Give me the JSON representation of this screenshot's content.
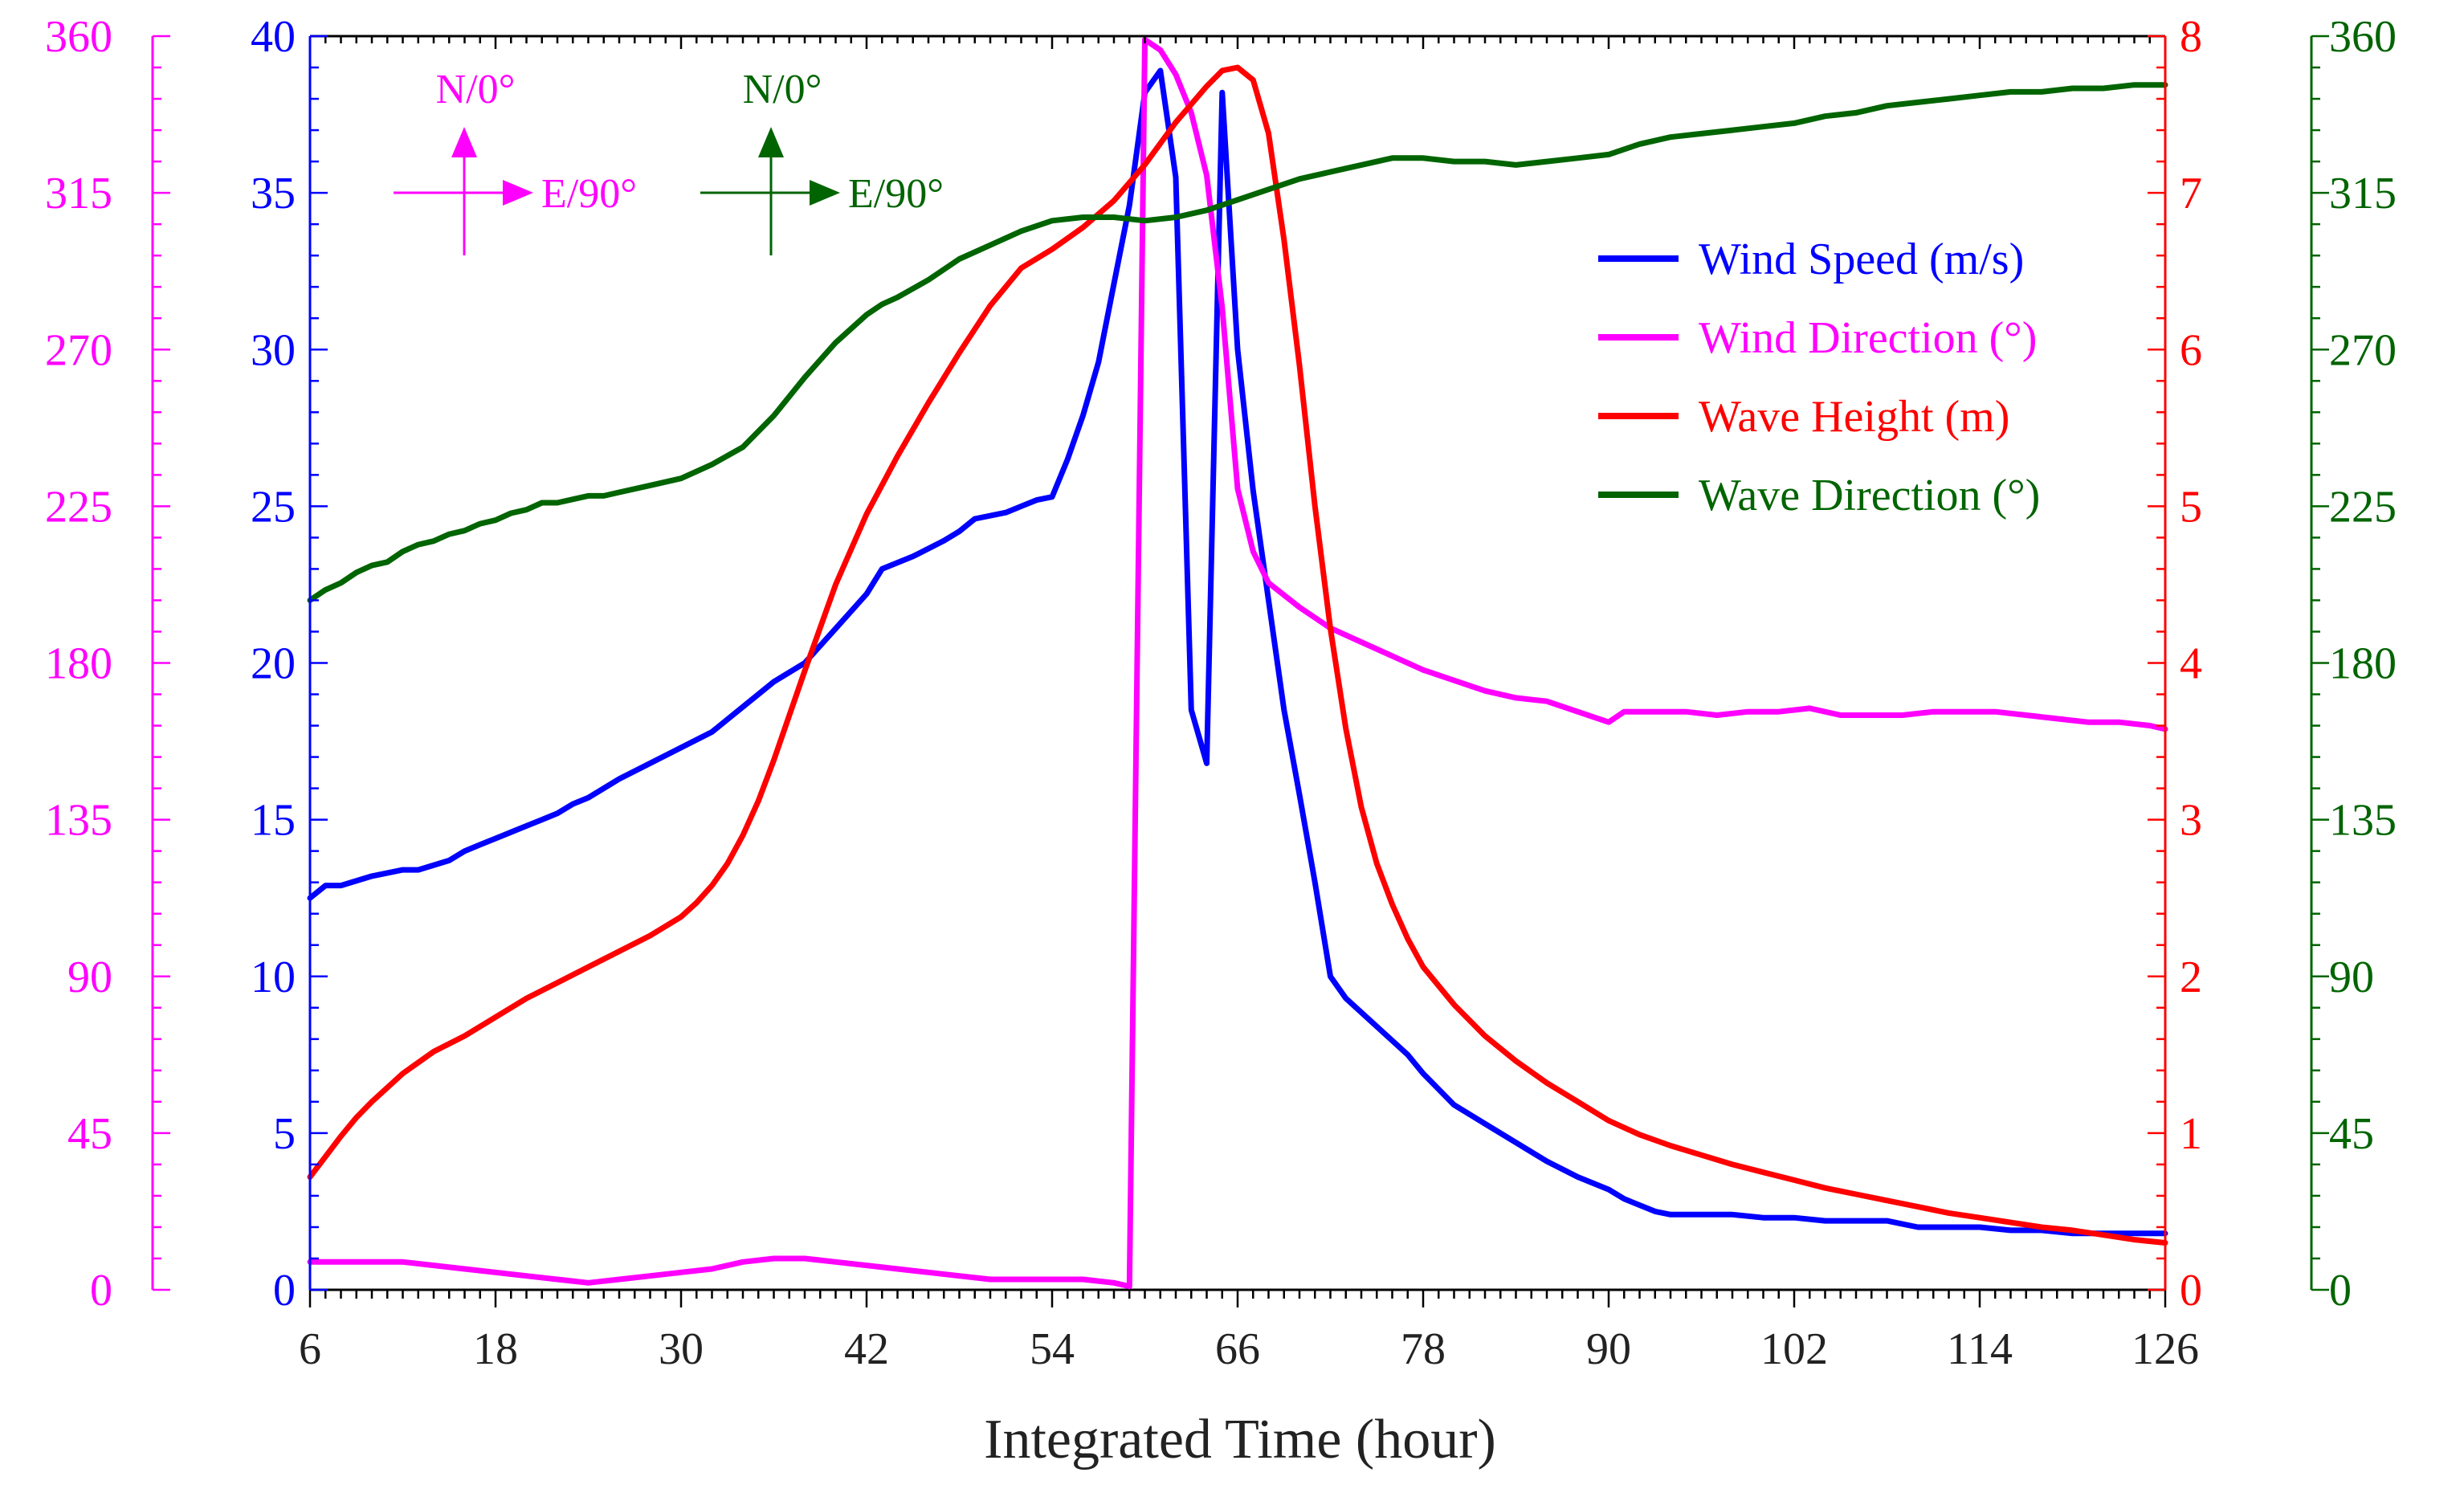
{
  "chart_data": {
    "type": "line",
    "title": "",
    "xlabel": "Integrated Time (hour)",
    "xlim": [
      6,
      126
    ],
    "xticks": [
      6,
      18,
      30,
      42,
      54,
      66,
      78,
      90,
      102,
      114,
      126
    ],
    "axes": {
      "wind_direction": {
        "color": "#ff00ff",
        "side": "outer-left",
        "lim": [
          0,
          360
        ],
        "ticks": [
          0,
          45,
          90,
          135,
          180,
          225,
          270,
          315,
          360
        ]
      },
      "wind_speed": {
        "color": "#0000ff",
        "side": "left",
        "lim": [
          0,
          40
        ],
        "ticks": [
          0,
          5,
          10,
          15,
          20,
          25,
          30,
          35,
          40
        ]
      },
      "wave_height": {
        "color": "#ff0000",
        "side": "right",
        "lim": [
          0,
          8
        ],
        "ticks": [
          0,
          1,
          2,
          3,
          4,
          5,
          6,
          7,
          8
        ]
      },
      "wave_direction": {
        "color": "#006400",
        "side": "outer-right",
        "lim": [
          0,
          360
        ],
        "ticks": [
          0,
          45,
          90,
          135,
          180,
          225,
          270,
          315,
          360
        ]
      }
    },
    "legend_position": "upper-right",
    "series": [
      {
        "name": "Wind Speed (m/s)",
        "axis": "wind_speed",
        "color": "#0000ff",
        "x": [
          6,
          7,
          8,
          10,
          12,
          13,
          15,
          16,
          17,
          18,
          20,
          21,
          22,
          23,
          24,
          26,
          28,
          30,
          32,
          34,
          36,
          38,
          40,
          42,
          43,
          45,
          47,
          48,
          49,
          51,
          53,
          54,
          55,
          56,
          57,
          58,
          59,
          60,
          61,
          62,
          63,
          64,
          64.5,
          65,
          66,
          67,
          68,
          69,
          70,
          71,
          72,
          73,
          75,
          77,
          78,
          79,
          80,
          82,
          84,
          86,
          88,
          90,
          91,
          93,
          94,
          96,
          98,
          100,
          102,
          104,
          106,
          108,
          110,
          112,
          114,
          116,
          118,
          120,
          122,
          124,
          126
        ],
        "y": [
          12.5,
          12.9,
          12.9,
          13.2,
          13.4,
          13.4,
          13.7,
          14.0,
          14.2,
          14.4,
          14.8,
          15.0,
          15.2,
          15.5,
          15.7,
          16.3,
          16.8,
          17.3,
          17.8,
          18.6,
          19.4,
          20.0,
          21.1,
          22.2,
          23.0,
          23.4,
          23.9,
          24.2,
          24.6,
          24.8,
          25.2,
          25.3,
          26.5,
          27.9,
          29.6,
          32.1,
          34.6,
          38.2,
          38.9,
          35.5,
          18.5,
          16.8,
          27.5,
          38.2,
          30.0,
          25.5,
          22.0,
          18.5,
          15.8,
          13.0,
          10.0,
          9.3,
          8.4,
          7.5,
          6.9,
          6.4,
          5.9,
          5.3,
          4.7,
          4.1,
          3.6,
          3.2,
          2.9,
          2.5,
          2.4,
          2.4,
          2.4,
          2.3,
          2.3,
          2.2,
          2.2,
          2.2,
          2.0,
          2.0,
          2.0,
          1.9,
          1.9,
          1.8,
          1.8,
          1.8,
          1.8
        ]
      },
      {
        "name": "Wind Direction (°)",
        "axis": "wind_direction",
        "color": "#ff00ff",
        "x": [
          6,
          8,
          10,
          12,
          14,
          16,
          18,
          20,
          22,
          24,
          26,
          28,
          30,
          32,
          34,
          36,
          38,
          40,
          42,
          44,
          46,
          48,
          50,
          52,
          54,
          56,
          58,
          59,
          60,
          61,
          62,
          63,
          64,
          65,
          66,
          67,
          68,
          70,
          72,
          74,
          76,
          78,
          80,
          82,
          84,
          86,
          88,
          90,
          91,
          93,
          95,
          97,
          99,
          101,
          103,
          105,
          107,
          109,
          111,
          113,
          115,
          117,
          119,
          121,
          123,
          125,
          126
        ],
        "y": [
          8,
          8,
          8,
          8,
          7,
          6,
          5,
          4,
          3,
          2,
          3,
          4,
          5,
          6,
          8,
          9,
          9,
          8,
          7,
          6,
          5,
          4,
          3,
          3,
          3,
          3,
          2,
          1,
          359,
          356,
          349,
          338,
          320,
          282,
          230,
          212,
          203,
          196,
          190,
          186,
          182,
          178,
          175,
          172,
          170,
          169,
          166,
          163,
          166,
          166,
          166,
          165,
          166,
          166,
          167,
          165,
          165,
          165,
          166,
          166,
          166,
          165,
          164,
          163,
          163,
          162,
          161
        ]
      },
      {
        "name": "Wave Height (m)",
        "axis": "wave_height",
        "color": "#ff0000",
        "x": [
          6,
          7,
          8,
          9,
          10,
          12,
          14,
          16,
          18,
          20,
          22,
          24,
          26,
          28,
          30,
          31,
          32,
          33,
          34,
          35,
          36,
          38,
          40,
          42,
          44,
          46,
          48,
          50,
          52,
          54,
          56,
          58,
          60,
          62,
          64,
          65,
          66,
          67,
          68,
          69,
          70,
          71,
          72,
          73,
          74,
          75,
          76,
          77,
          78,
          80,
          82,
          84,
          86,
          88,
          90,
          92,
          94,
          96,
          98,
          100,
          102,
          104,
          106,
          108,
          110,
          112,
          114,
          116,
          118,
          120,
          122,
          124,
          126
        ],
        "y": [
          0.72,
          0.85,
          0.98,
          1.1,
          1.2,
          1.38,
          1.52,
          1.62,
          1.74,
          1.86,
          1.96,
          2.06,
          2.16,
          2.26,
          2.38,
          2.47,
          2.58,
          2.72,
          2.9,
          3.12,
          3.38,
          3.95,
          4.5,
          4.95,
          5.32,
          5.66,
          5.98,
          6.28,
          6.52,
          6.64,
          6.78,
          6.95,
          7.18,
          7.45,
          7.68,
          7.78,
          7.8,
          7.72,
          7.38,
          6.7,
          5.9,
          5.0,
          4.22,
          3.58,
          3.08,
          2.72,
          2.46,
          2.24,
          2.06,
          1.82,
          1.62,
          1.46,
          1.32,
          1.2,
          1.08,
          0.99,
          0.92,
          0.86,
          0.8,
          0.75,
          0.7,
          0.65,
          0.61,
          0.57,
          0.53,
          0.49,
          0.46,
          0.43,
          0.4,
          0.38,
          0.35,
          0.32,
          0.3
        ]
      },
      {
        "name": "Wave Direction (°)",
        "axis": "wave_direction",
        "color": "#006400",
        "x": [
          6,
          7,
          8,
          9,
          10,
          11,
          12,
          13,
          14,
          15,
          16,
          17,
          18,
          19,
          20,
          21,
          22,
          23,
          24,
          25,
          26,
          28,
          30,
          32,
          34,
          36,
          38,
          40,
          42,
          43,
          44,
          46,
          48,
          50,
          52,
          54,
          56,
          58,
          60,
          62,
          64,
          66,
          68,
          70,
          72,
          74,
          76,
          78,
          80,
          82,
          84,
          86,
          88,
          90,
          92,
          94,
          96,
          98,
          100,
          102,
          104,
          106,
          108,
          110,
          112,
          114,
          116,
          118,
          120,
          122,
          124,
          126
        ],
        "y": [
          198,
          201,
          203,
          206,
          208,
          209,
          212,
          214,
          215,
          217,
          218,
          220,
          221,
          223,
          224,
          226,
          226,
          227,
          228,
          228,
          229,
          231,
          233,
          237,
          242,
          251,
          262,
          272,
          280,
          283,
          285,
          290,
          296,
          300,
          304,
          307,
          308,
          308,
          307,
          308,
          310,
          313,
          316,
          319,
          321,
          323,
          325,
          325,
          324,
          324,
          323,
          324,
          325,
          326,
          329,
          331,
          332,
          333,
          334,
          335,
          337,
          338,
          340,
          341,
          342,
          343,
          344,
          344,
          345,
          345,
          346,
          346
        ]
      }
    ],
    "compass": [
      {
        "north_label": "N/0°",
        "east_label": "E/90°",
        "color": "#ff00ff"
      },
      {
        "north_label": "N/0°",
        "east_label": "E/90°",
        "color": "#006400"
      }
    ]
  }
}
